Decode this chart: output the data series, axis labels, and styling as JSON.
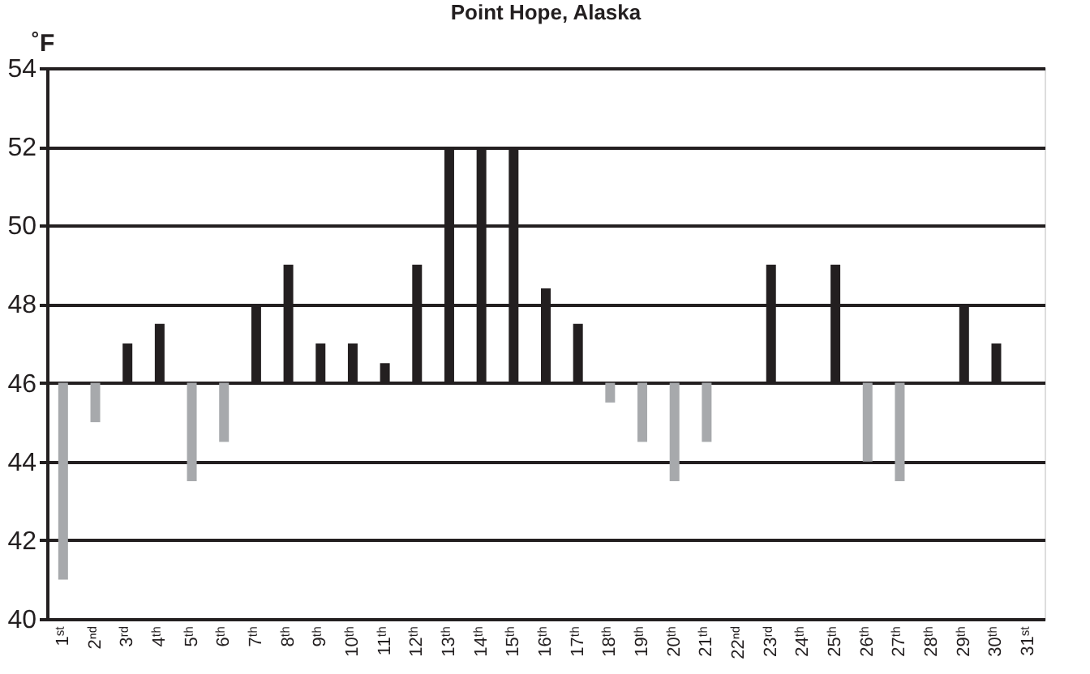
{
  "chart_data": {
    "type": "bar",
    "title": "Point Hope, Alaska",
    "ylabel": "˚F",
    "categories": [
      "1ˢᵗ",
      "2ⁿᵈ",
      "3ʳᵈ",
      "4ᵗʰ",
      "5ᵗʰ",
      "6ᵗʰ",
      "7ᵗʰ",
      "8ᵗʰ",
      "9ᵗʰ",
      "10ᵗʰ",
      "11ᵗʰ",
      "12ᵗʰ",
      "13ᵗʰ",
      "14ᵗʰ",
      "15ᵗʰ",
      "16ᵗʰ",
      "17ᵗʰ",
      "18ᵗʰ",
      "19ᵗʰ",
      "20ᵗʰ",
      "21ᵗʰ",
      "22ⁿᵈ",
      "23ʳᵈ",
      "24ᵗʰ",
      "25ᵗʰ",
      "26ᵗʰ",
      "27ᵗʰ",
      "28ᵗʰ",
      "29ᵗʰ",
      "30ᵗʰ",
      "31ˢᵗ"
    ],
    "base": [
      46,
      46,
      46,
      46,
      46,
      46,
      46,
      46,
      46,
      46,
      46,
      46,
      46,
      46,
      46,
      46,
      46,
      46,
      46,
      46,
      46,
      null,
      46,
      null,
      46,
      46,
      46,
      null,
      46,
      46,
      null
    ],
    "values": [
      -5,
      -1,
      1,
      1.5,
      -2.5,
      -1.5,
      2,
      3,
      1,
      1,
      0.5,
      3,
      6,
      6,
      6,
      2.4,
      1.5,
      -0.5,
      -1.5,
      -2.5,
      -1.5,
      null,
      3,
      null,
      3,
      -2,
      -2.5,
      null,
      2,
      1,
      null
    ],
    "colors": [
      "#a7a9ac",
      "#a7a9ac",
      "#231f20",
      "#231f20",
      "#a7a9ac",
      "#a7a9ac",
      "#231f20",
      "#231f20",
      "#231f20",
      "#231f20",
      "#231f20",
      "#231f20",
      "#231f20",
      "#231f20",
      "#231f20",
      "#231f20",
      "#231f20",
      "#a7a9ac",
      "#a7a9ac",
      "#a7a9ac",
      "#a7a9ac",
      "#231f20",
      "#231f20",
      "#231f20",
      "#231f20",
      "#a7a9ac",
      "#a7a9ac",
      "#231f20",
      "#231f20",
      "#231f20",
      "#231f20"
    ],
    "ylim": [
      40,
      54
    ],
    "yticks": [
      40,
      42,
      44,
      46,
      48,
      50,
      52,
      54
    ],
    "grid": "y"
  }
}
